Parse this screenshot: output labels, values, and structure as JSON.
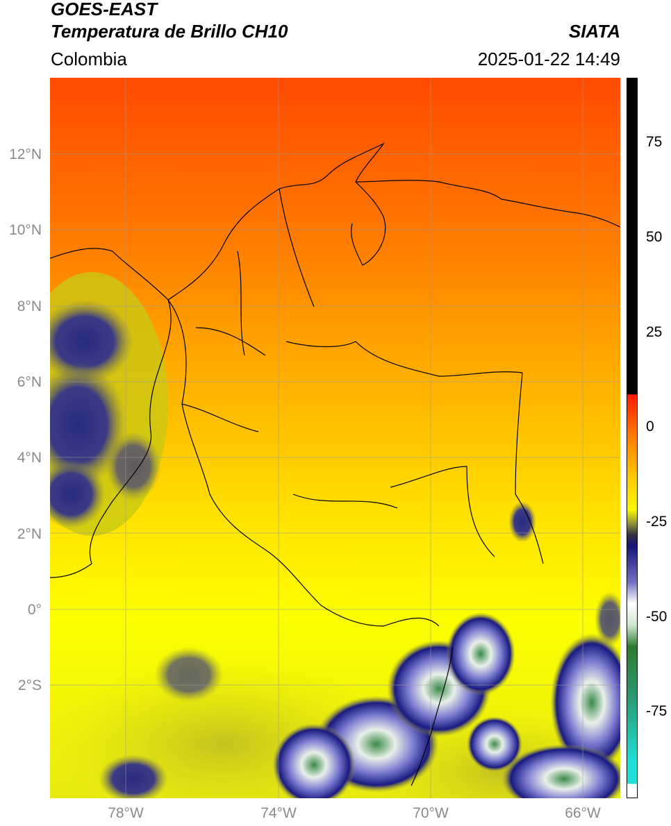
{
  "header": {
    "line1": "GOES-EAST",
    "line2": "Temperatura de Brillo CH10",
    "region": "Colombia",
    "agency": "SIATA",
    "datetime": "2025-01-22 14:49"
  },
  "map": {
    "lat_labels": [
      "12°N",
      "10°N",
      "8°N",
      "6°N",
      "4°N",
      "2°N",
      "0°",
      "2°S"
    ],
    "lon_labels": [
      "78°W",
      "74°W",
      "70°W",
      "66°W"
    ],
    "extent_lon": [
      -80,
      -65
    ],
    "extent_lat": [
      -5,
      14
    ]
  },
  "colorbar": {
    "labels": [
      "75",
      "50",
      "25",
      "0",
      "-25",
      "-50",
      "-75"
    ],
    "range": [
      -95,
      90
    ],
    "colors": {
      "black": "#000000",
      "red": "#ff0000",
      "orange": "#ff7f00",
      "yellow": "#ffff00",
      "olive": "#7a7a3a",
      "navy": "#16167a",
      "white": "#ffffff",
      "green": "#2e8b3a",
      "cyan": "#1fd8d0"
    }
  }
}
